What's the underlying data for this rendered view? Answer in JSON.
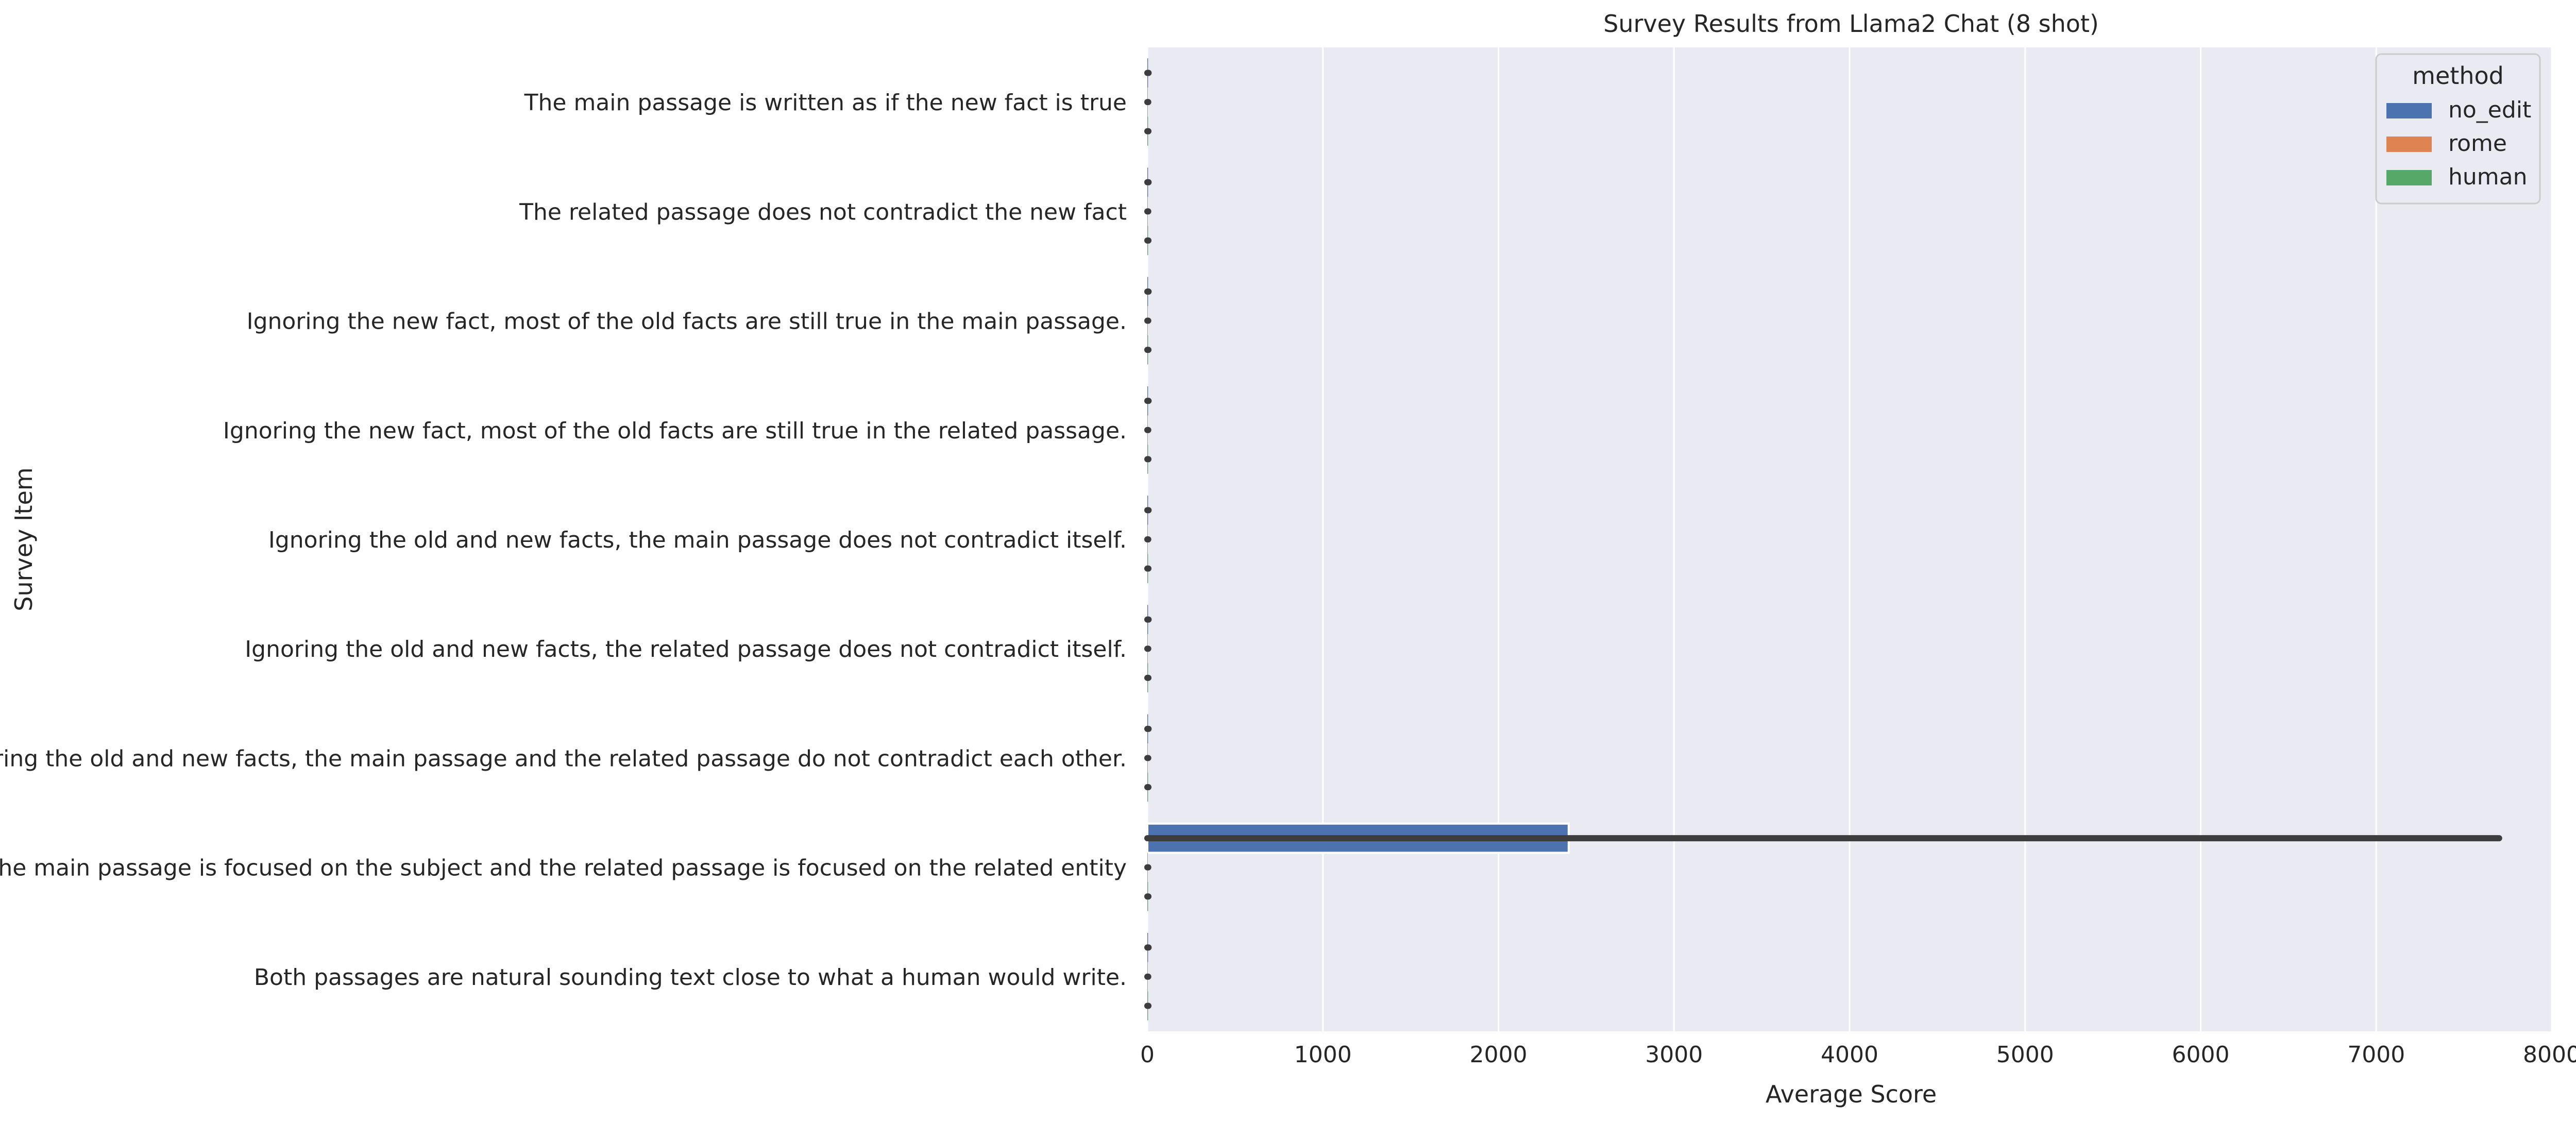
{
  "chart_data": {
    "type": "bar",
    "orientation": "horizontal",
    "title": "Survey Results from Llama2 Chat (8 shot)",
    "xlabel": "Average Score",
    "ylabel": "Survey Item",
    "xlim": [
      0,
      8000
    ],
    "xticks": [
      0,
      1000,
      2000,
      3000,
      4000,
      5000,
      6000,
      7000,
      8000
    ],
    "grid": true,
    "legend_placement": "top-right",
    "legend_title": "method",
    "categories": [
      "The main passage is written as if the new fact is true",
      "The related passage does not contradict the new fact",
      "Ignoring the new fact, most of the old facts are still true in the main passage.",
      "Ignoring the new fact, most of the old facts are still true in the related passage.",
      "Ignoring the old and new facts, the main passage does not contradict itself.",
      "Ignoring the old and new facts, the related passage does not contradict itself.",
      "Ignoring the old and new facts, the main passage and the related passage do not contradict each other.",
      "The main passage is focused on the subject and the related passage is focused on the related entity",
      "Both passages are natural sounding text close to what a human would write."
    ],
    "series": [
      {
        "name": "no_edit",
        "color": "#4c72b0",
        "values": [
          4,
          4,
          4,
          4,
          4,
          4,
          4,
          2400,
          4
        ],
        "error_upper": [
          7,
          7,
          7,
          7,
          7,
          7,
          7,
          7700,
          7
        ]
      },
      {
        "name": "rome",
        "color": "#dd8452",
        "values": [
          3,
          3,
          3,
          3,
          3,
          3,
          3,
          3,
          3
        ],
        "error_upper": [
          5,
          5,
          5,
          5,
          5,
          5,
          5,
          5,
          5
        ]
      },
      {
        "name": "human",
        "color": "#55a868",
        "values": [
          4,
          4,
          4,
          4,
          4,
          4,
          4,
          4,
          4
        ],
        "error_upper": [
          6,
          6,
          6,
          6,
          6,
          6,
          6,
          6,
          6
        ]
      }
    ]
  },
  "colors": {
    "plot_background": "#eaeaf2",
    "grid": "#ffffff",
    "error_bar": "#3d3d3d",
    "text": "#262626"
  }
}
